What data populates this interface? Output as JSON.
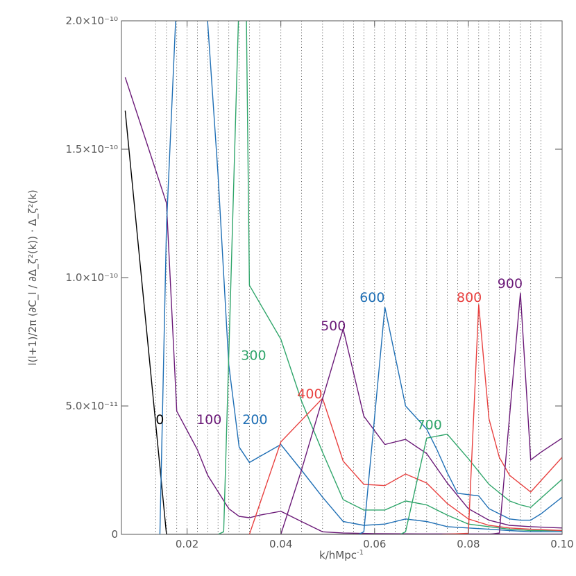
{
  "chart_data": {
    "type": "line",
    "xlabel": "k/hMpc",
    "xlabel_sup": "-1",
    "ylabel": "l(l+1)/2π (∂C_l / ∂Δ_ζ²(k)) · Δ_ζ²(k)",
    "xlim": [
      0.006,
      0.1
    ],
    "ylim": [
      0,
      2e-10
    ],
    "grid": "vertical dotted lines at k sample points",
    "legend": "none (curves labelled inline)",
    "x_ticks": [
      {
        "value": 0.02,
        "label": "0.02"
      },
      {
        "value": 0.04,
        "label": "0.04"
      },
      {
        "value": 0.06,
        "label": "0.06"
      },
      {
        "value": 0.08,
        "label": "0.08"
      },
      {
        "value": 0.1,
        "label": "0.10"
      }
    ],
    "y_ticks": [
      {
        "value": 0,
        "label": "0"
      },
      {
        "value": 5e-11,
        "label": "5.0×10⁻¹¹"
      },
      {
        "value": 1e-10,
        "label": "1.0×10⁻¹⁰"
      },
      {
        "value": 1.5e-10,
        "label": "1.5×10⁻¹⁰"
      },
      {
        "value": 2e-10,
        "label": "2.0×10⁻¹⁰"
      }
    ],
    "grid_x": [
      0.0133,
      0.0156,
      0.0178,
      0.02,
      0.0222,
      0.0244,
      0.0266,
      0.0289,
      0.0311,
      0.0333,
      0.0355,
      0.04,
      0.0444,
      0.0489,
      0.0533,
      0.0555,
      0.0577,
      0.06,
      0.0622,
      0.0644,
      0.0666,
      0.0688,
      0.0711,
      0.0733,
      0.0755,
      0.0777,
      0.08,
      0.0822,
      0.0844,
      0.0866,
      0.0888,
      0.0911,
      0.0933,
      0.0955
    ],
    "x": [
      0.0068,
      0.0156,
      0.02,
      0.0244,
      0.0266,
      0.0289,
      0.0311,
      0.0333,
      0.0355,
      0.04,
      0.0444,
      0.0489,
      0.0533,
      0.0577,
      0.06,
      0.0622,
      0.0666,
      0.0711,
      0.0733,
      0.0755,
      0.0777,
      0.08,
      0.0822,
      0.0844,
      0.0866,
      0.0888,
      0.0911,
      0.0933,
      0.1
    ],
    "series": [
      {
        "name": "0",
        "color": "#000000",
        "label_at": [
          0.0133,
          4.3e-11
        ],
        "points": [
          [
            0.0068,
            1.65e-10
          ],
          [
            0.0156,
            0.0
          ],
          [
            0.1,
            0.0
          ]
        ]
      },
      {
        "name": "100",
        "color": "#6b1a78",
        "label_at": [
          0.022,
          4.3e-11
        ],
        "points": [
          [
            0.0068,
            1.78e-10
          ],
          [
            0.0156,
            1.29e-10
          ],
          [
            0.0178,
            4.8e-11
          ],
          [
            0.0222,
            3.3e-11
          ],
          [
            0.0244,
            2.3e-11
          ],
          [
            0.0289,
            1e-11
          ],
          [
            0.0311,
            7e-12
          ],
          [
            0.0333,
            6.5e-12
          ],
          [
            0.0355,
            7.5e-12
          ],
          [
            0.04,
            9e-12
          ],
          [
            0.0444,
            5e-12
          ],
          [
            0.0489,
            1e-12
          ],
          [
            0.0533,
            5e-13
          ],
          [
            0.06,
            3e-13
          ],
          [
            0.07,
            2e-13
          ],
          [
            0.1,
            1e-13
          ]
        ]
      },
      {
        "name": "200",
        "color": "#1f6fb5",
        "label_at": [
          0.0318,
          4.3e-11
        ],
        "points": [
          [
            0.0142,
            0.0
          ],
          [
            0.0156,
            1.2e-10
          ],
          [
            0.0178,
            2.1e-10
          ],
          [
            0.024,
            2.1e-10
          ],
          [
            0.0266,
            1.4e-10
          ],
          [
            0.0289,
            6.6e-11
          ],
          [
            0.0311,
            3.4e-11
          ],
          [
            0.0333,
            2.8e-11
          ],
          [
            0.04,
            3.5e-11
          ],
          [
            0.0444,
            2.5e-11
          ],
          [
            0.0489,
            1.45e-11
          ],
          [
            0.0533,
            5e-12
          ],
          [
            0.0577,
            3.5e-12
          ],
          [
            0.0622,
            4e-12
          ],
          [
            0.0666,
            6e-12
          ],
          [
            0.0711,
            5e-12
          ],
          [
            0.0755,
            3e-12
          ],
          [
            0.08,
            2.5e-12
          ],
          [
            0.0844,
            2e-12
          ],
          [
            0.0888,
            1.5e-12
          ],
          [
            0.0933,
            1e-12
          ],
          [
            0.1,
            1e-12
          ]
        ]
      },
      {
        "name": "300",
        "color": "#2fa56a",
        "label_at": [
          0.0315,
          6.8e-11
        ],
        "points": [
          [
            0.0266,
            0.0
          ],
          [
            0.0278,
            1e-12
          ],
          [
            0.0289,
            7e-11
          ],
          [
            0.0311,
            2.1e-10
          ],
          [
            0.0326,
            2.1e-10
          ],
          [
            0.0333,
            9.7e-11
          ],
          [
            0.04,
            7.6e-11
          ],
          [
            0.0444,
            5.2e-11
          ],
          [
            0.0489,
            3.2e-11
          ],
          [
            0.0533,
            1.35e-11
          ],
          [
            0.0577,
            9.5e-12
          ],
          [
            0.0622,
            9.5e-12
          ],
          [
            0.0666,
            1.3e-11
          ],
          [
            0.0711,
            1.15e-11
          ],
          [
            0.0755,
            7.5e-12
          ],
          [
            0.08,
            4e-12
          ],
          [
            0.0844,
            3e-12
          ],
          [
            0.0888,
            2e-12
          ],
          [
            0.0933,
            1.5e-12
          ],
          [
            0.1,
            1.5e-12
          ]
        ]
      },
      {
        "name": "400",
        "color": "#e8403f",
        "label_at": [
          0.0435,
          5.3e-11
        ],
        "points": [
          [
            0.0333,
            0.0
          ],
          [
            0.04,
            3.6e-11
          ],
          [
            0.0489,
            5.3e-11
          ],
          [
            0.0533,
            2.85e-11
          ],
          [
            0.0577,
            1.95e-11
          ],
          [
            0.0622,
            1.9e-11
          ],
          [
            0.0666,
            2.35e-11
          ],
          [
            0.0711,
            2e-11
          ],
          [
            0.0755,
            1.2e-11
          ],
          [
            0.08,
            6e-12
          ],
          [
            0.0844,
            3.5e-12
          ],
          [
            0.0888,
            2.5e-12
          ],
          [
            0.0933,
            2e-12
          ],
          [
            0.1,
            1.5e-12
          ]
        ]
      },
      {
        "name": "500",
        "color": "#6b1a78",
        "label_at": [
          0.0485,
          7.95e-11
        ],
        "points": [
          [
            0.04,
            0.0
          ],
          [
            0.0444,
            2.5e-11
          ],
          [
            0.0533,
            8e-11
          ],
          [
            0.0577,
            4.6e-11
          ],
          [
            0.0622,
            3.5e-11
          ],
          [
            0.0666,
            3.7e-11
          ],
          [
            0.0711,
            3.15e-11
          ],
          [
            0.0755,
            2e-11
          ],
          [
            0.08,
            1e-11
          ],
          [
            0.0844,
            5.5e-12
          ],
          [
            0.0888,
            3.5e-12
          ],
          [
            0.0933,
            3e-12
          ],
          [
            0.1,
            2.5e-12
          ]
        ]
      },
      {
        "name": "600",
        "color": "#1f6fb5",
        "label_at": [
          0.0568,
          9.05e-11
        ],
        "points": [
          [
            0.0566,
            0.0
          ],
          [
            0.0577,
            1e-12
          ],
          [
            0.0622,
            8.85e-11
          ],
          [
            0.0666,
            5e-11
          ],
          [
            0.0711,
            4.1e-11
          ],
          [
            0.0733,
            3.3e-11
          ],
          [
            0.0755,
            2.4e-11
          ],
          [
            0.0777,
            1.6e-11
          ],
          [
            0.0822,
            1.5e-11
          ],
          [
            0.0844,
            1e-11
          ],
          [
            0.0866,
            8e-12
          ],
          [
            0.0888,
            6e-12
          ],
          [
            0.0911,
            5.5e-12
          ],
          [
            0.0933,
            5.5e-12
          ],
          [
            0.0955,
            8e-12
          ],
          [
            0.1,
            1.45e-11
          ]
        ]
      },
      {
        "name": "700",
        "color": "#2fa56a",
        "label_at": [
          0.069,
          4.1e-11
        ],
        "points": [
          [
            0.0655,
            0.0
          ],
          [
            0.0666,
            1e-12
          ],
          [
            0.0711,
            3.75e-11
          ],
          [
            0.0755,
            3.9e-11
          ],
          [
            0.08,
            2.95e-11
          ],
          [
            0.0844,
            1.95e-11
          ],
          [
            0.0888,
            1.3e-11
          ],
          [
            0.0911,
            1.15e-11
          ],
          [
            0.0933,
            1.05e-11
          ],
          [
            0.1,
            2.15e-11
          ]
        ]
      },
      {
        "name": "800",
        "color": "#e8403f",
        "label_at": [
          0.0775,
          9.05e-11
        ],
        "points": [
          [
            0.0744,
            0.0
          ],
          [
            0.08,
            4e-13
          ],
          [
            0.0822,
            8.95e-11
          ],
          [
            0.0844,
            4.5e-11
          ],
          [
            0.0866,
            3e-11
          ],
          [
            0.0888,
            2.3e-11
          ],
          [
            0.0933,
            1.65e-11
          ],
          [
            0.1,
            3e-11
          ]
        ]
      },
      {
        "name": "900",
        "color": "#6b1a78",
        "label_at": [
          0.0862,
          9.6e-11
        ],
        "points": [
          [
            0.0844,
            0.0
          ],
          [
            0.0866,
            5e-13
          ],
          [
            0.0911,
            9.4e-11
          ],
          [
            0.0933,
            2.9e-11
          ],
          [
            0.0955,
            3.2e-11
          ],
          [
            0.1,
            3.75e-11
          ]
        ]
      }
    ]
  }
}
